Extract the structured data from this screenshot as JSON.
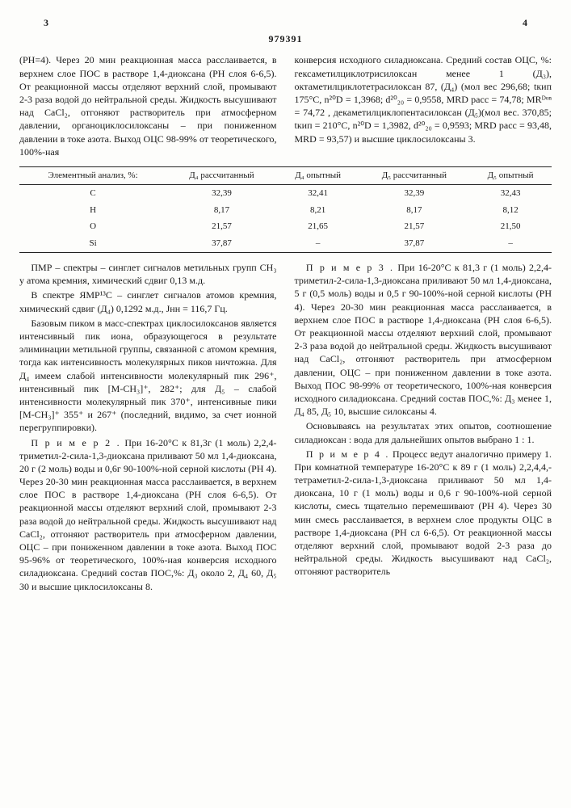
{
  "page_left": "3",
  "page_right": "4",
  "doc_id": "979391",
  "top_left": "(PH=4). Через 20 мин реакционная масса расслаивается, в верхнем слое ПОС в растворе 1,4-диоксана (PH слоя 6-6,5). От реакционной массы отделяют верхний слой, промывают 2-3 раза водой до нейтральной среды. Жидкость высушивают над CaCl₂, отгоняют растворитель при атмосферном давлении, органоциклосилоксаны – при пониженном давлении в токе азота. Выход ОЦС 98-99% от теоретического, 100%-ная",
  "top_right": "конверсия исходного силадиоксана. Средний состав ОЦС, %: гексаметилциклотрисилоксан менее 1 (Д₃), октаметилциклотетрасилоксан 87, (Д₄)  (мол вес 296,68; tкип 175°С, n²⁰D = 1,3968; d²⁰₂₀ = 0,9558, MRD расс = 74,78; MRᴰᵒⁿ = 74,72 , декаметилциклопентасилоксан (Д₅)(мол вес. 370,85; tкип = 210°С, n²⁰D = 1,3982, d²⁰₂₀ = 0,9593; MRD расс = 93,48, MRD = 93,57) и высшие циклосилоксаны 3.",
  "table": {
    "headers": [
      "Элементный анализ, %:",
      "Д₄ рассчитанный",
      "Д₄ опытный",
      "Д₅ рассчитанный",
      "Д₅ опытный"
    ],
    "rows": [
      [
        "C",
        "32,39",
        "32,41",
        "32,39",
        "32,43"
      ],
      [
        "H",
        "8,17",
        "8,21",
        "8,17",
        "8,12"
      ],
      [
        "O",
        "21,57",
        "21,65",
        "21,57",
        "21,50"
      ],
      [
        "Si",
        "37,87",
        "–",
        "37,87",
        "–"
      ]
    ]
  },
  "left": {
    "pmr": "ПМР – спектры – синглет сигналов метильных групп CH₃ у атома кремния, химический сдвиг 0,13 м.д.",
    "c13": "В спектре ЯMP¹³C – синглет сигналов атомов кремния, химический сдвиг (Д₄) 0,1292 м.д., Jнн = 116,7 Гц.",
    "mass": "Базовым пиком в масс-спектрах циклосилоксанов является интенсивный пик иона, образующегося в результате элиминации метильной группы, связанной с атомом кремния, тогда как интенсивность молекулярных пиков ничтожна. Для Д₄ имеем слабой интенсивности молекулярный пик 296⁺, интенсивный пик [M-CH₃]⁺, 282⁺; для Д₅ – слабой интенсивности молекулярный пик 370⁺, интенсивные пики [M-CH₃]⁺ 355⁺ и 267⁺ (последний, видимо, за счет ионной перегруппировки).",
    "ex2_hdr": "П р и м е р  2 .",
    "ex2": "При 16-20°C к 81,3г (1 моль) 2,2,4-триметил-2-сила-1,3-диоксана приливают 50 мл 1,4-диоксана, 20 г (2 моль) воды и 0,6г 90-100%-ной серной кислоты (PH 4). Через 20-30 мин реакционная масса расслаивается, в верхнем слое ПОС в растворе 1,4-диоксана (PH слоя 6-6,5). От реакционной массы отделяют верхний слой, промывают 2-3 раза водой до нейтральной среды. Жидкость высушивают над CaCl₂, отгоняют растворитель при атмосферном давлении, ОЦС – при пониженном давлении в токе азота. Выход ПОС 95-96% от теоретического, 100%-ная конверсия исходного силадиоксана. Средний состав ПОС,%: Д₃ около 2, Д₄ 60, Д₅ 30 и высшие циклосилоксаны 8."
  },
  "right": {
    "ex3_hdr": "П р и м е р  3 .",
    "ex3": "При 16-20°C к 81,3 г (1 моль) 2,2,4-триметил-2-сила-1,3-диоксана приливают 50 мл 1,4-диоксана, 5 г (0,5 моль) воды и 0,5 г 90-100%-ной серной кислоты (PH 4). Через 20-30 мин реакционная масса расслаивается, в верхнем слое ПОС в растворе 1,4-диоксана (PH слоя 6-6,5). От реакционной массы отделяют верхний слой, промывают 2-3 раза водой до нейтральной среды. Жидкость высушивают над CaCl₂, отгоняют растворитель при атмосферном давлении, ОЦС – при пониженном давлении в токе азота. Выход ПОС 98-99% от теоретического, 100%-ная конверсия исходного силадиоксана. Средний состав ПОС,%: Д₃ менее 1, Д₄ 85, Д₅ 10, высшие силоксаны 4.",
    "note": "Основываясь на результатах этих опытов, соотношение силадиоксан : вода для дальнейших опытов выбрано 1 : 1.",
    "ex4_hdr": "П р и м е р  4 .",
    "ex4": "Процесс ведут аналогично примеру 1. При комнатной температуре 16-20°C к 89 г (1 моль) 2,2,4,4,-тетраметил-2-сила-1,3-диоксана приливают 50 мл 1,4-диоксана, 10 г (1 моль) воды и 0,6 г 90-100%-ной серной кислоты, смесь тщательно перемешивают (PH 4). Через 30 мин смесь расслаивается, в верхнем слое продукты ОЦС в растворе 1,4-диоксана (PH сл 6-6,5). От реакционной массы отделяют верхний слой, промывают водой 2-3 раза до нейтральной среды. Жидкость высушивают над CaCl₂, отгоняют растворитель"
  }
}
